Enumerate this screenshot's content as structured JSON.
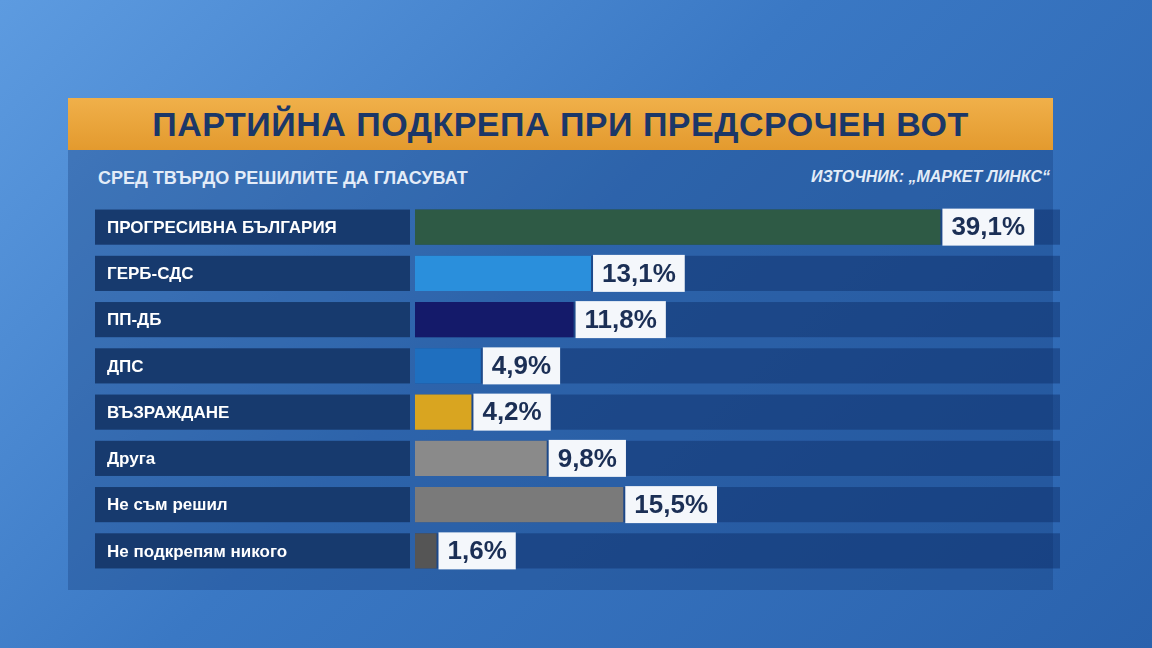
{
  "chart_data": {
    "type": "bar",
    "orientation": "horizontal",
    "title": "ПАРТИЙНА ПОДКРЕПА ПРИ ПРЕДСРОЧЕН ВОТ",
    "subtitle": "СРЕД ТВЪРДО РЕШИЛИТЕ ДА ГЛАСУВАТ",
    "annotations": [
      "ИЗТОЧНИК: „МАРКЕТ ЛИНКС“"
    ],
    "categories": [
      "ПРОГРЕСИВНА БЪЛГАРИЯ",
      "ГЕРБ-СДС",
      "ПП-ДБ",
      "ДПС",
      "ВЪЗРАЖДАНЕ",
      "Друга",
      "Не съм решил",
      "Не подкрепям никого"
    ],
    "values": [
      39.1,
      13.1,
      11.8,
      4.9,
      4.2,
      9.8,
      15.5,
      1.6
    ],
    "value_labels": [
      "39,1%",
      "13,1%",
      "11,8%",
      "4,9%",
      "4,2%",
      "9,8%",
      "15,5%",
      "1,6%"
    ],
    "colors": [
      "#2e5a45",
      "#2a8fdc",
      "#141a6a",
      "#1f6fbf",
      "#d9a520",
      "#8a8a8a",
      "#7a7a7a",
      "#555555"
    ],
    "xlim": [
      0,
      48
    ],
    "grid": false,
    "tick_labels": "y",
    "data_labels": true
  }
}
